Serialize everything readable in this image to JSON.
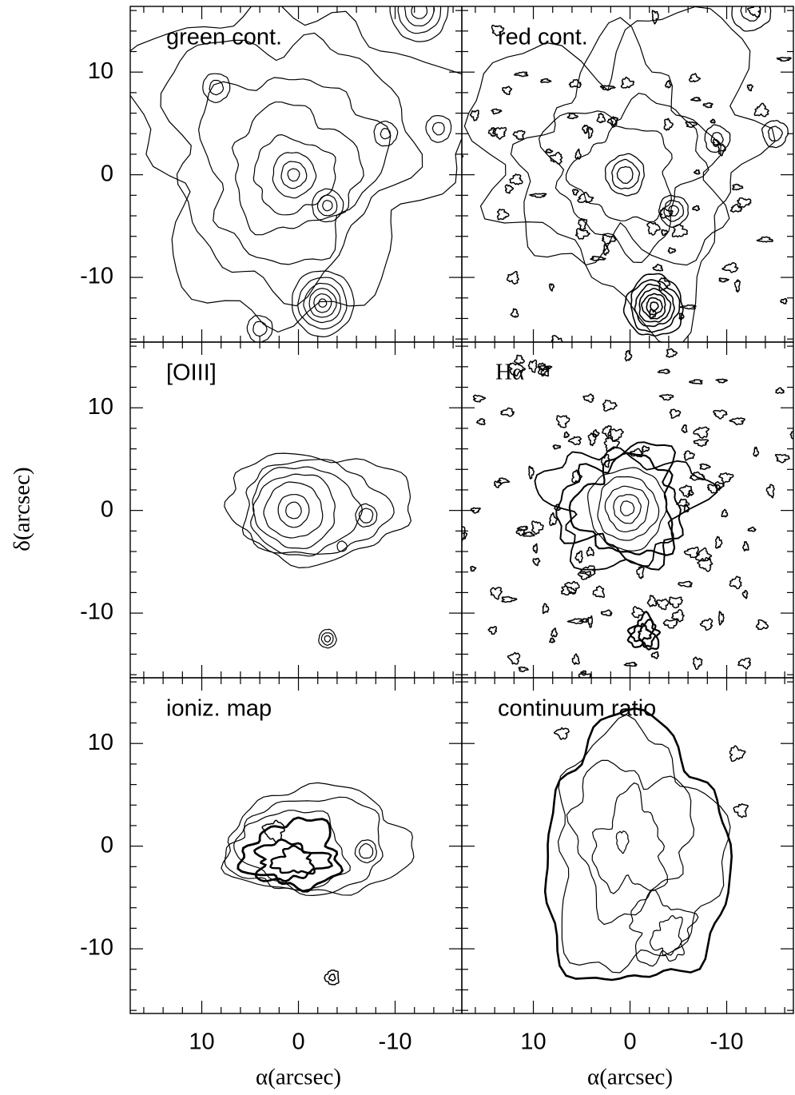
{
  "chart_data": {
    "type": "contour-grid",
    "x_label": "α(arcsec)",
    "y_label": "δ(arcsec)",
    "xlim": [
      17.4,
      -16.9
    ],
    "ylim": [
      -16.3,
      16.4
    ],
    "xticks": [
      10,
      0,
      -10
    ],
    "yticks": [
      -10,
      0,
      10
    ],
    "xminor": [
      16,
      14,
      12,
      8,
      6,
      4,
      2,
      -2,
      -4,
      -6,
      -8,
      -12,
      -14,
      -16
    ],
    "yminor": [
      -16,
      -14,
      -12,
      -8,
      -6,
      -4,
      -2,
      2,
      4,
      6,
      8,
      12,
      14,
      16
    ],
    "panels": [
      {
        "title": "green cont."
      },
      {
        "title": "red cont."
      },
      {
        "title": "[OIII]"
      },
      {
        "title": "Hα"
      },
      {
        "title": "ioniz. map"
      },
      {
        "title": "continuum ratio"
      }
    ]
  }
}
